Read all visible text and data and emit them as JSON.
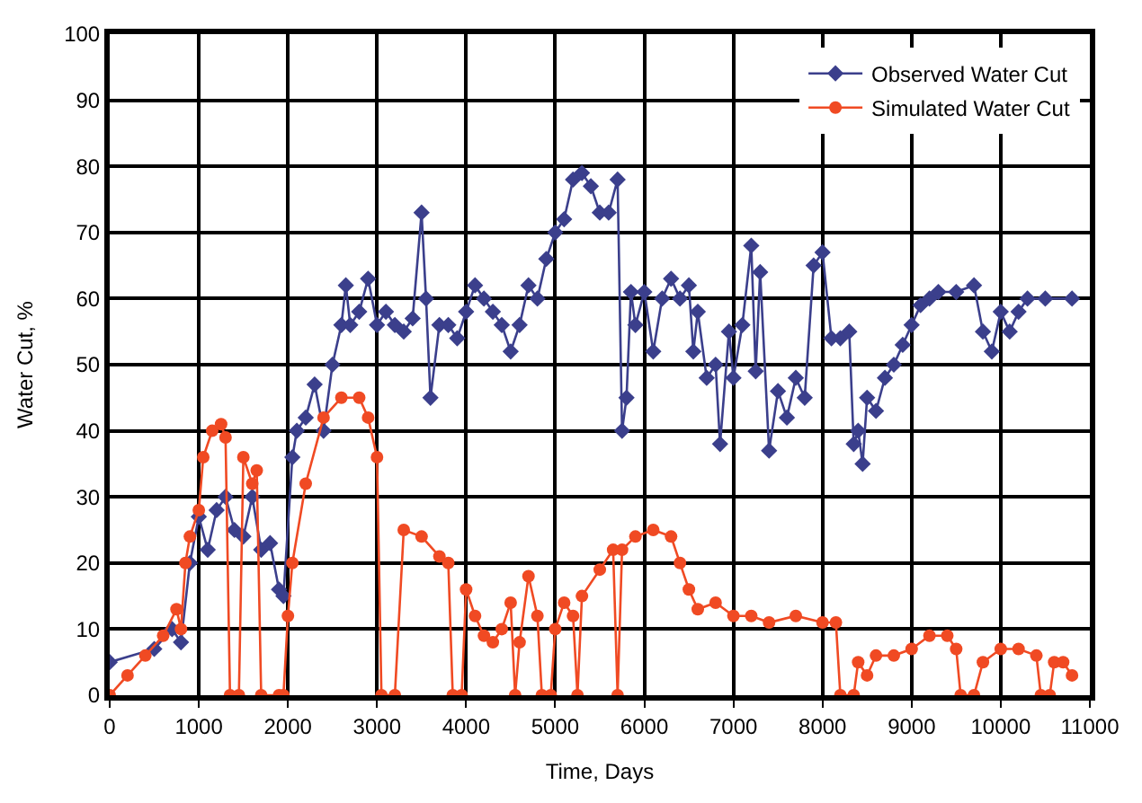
{
  "chart_data": {
    "type": "line",
    "xlabel": "Time, Days",
    "ylabel": "Water Cut, %",
    "xlim": [
      0,
      11000
    ],
    "ylim": [
      0,
      100
    ],
    "xticks": [
      0,
      1000,
      2000,
      3000,
      4000,
      5000,
      6000,
      7000,
      8000,
      9000,
      10000,
      11000
    ],
    "yticks": [
      0,
      10,
      20,
      30,
      40,
      50,
      60,
      70,
      80,
      90,
      100
    ],
    "grid": true,
    "legend": "top right",
    "line_style": "solid",
    "series": [
      {
        "name": "Observed Water Cut",
        "color": "#3b3f8c",
        "marker": "diamond",
        "x": [
          0,
          500,
          700,
          800,
          900,
          1000,
          1100,
          1200,
          1300,
          1400,
          1500,
          1600,
          1700,
          1800,
          1900,
          1950,
          2050,
          2100,
          2200,
          2300,
          2400,
          2500,
          2600,
          2650,
          2700,
          2800,
          2900,
          3000,
          3100,
          3200,
          3300,
          3400,
          3500,
          3550,
          3600,
          3700,
          3800,
          3900,
          4000,
          4100,
          4200,
          4300,
          4400,
          4500,
          4600,
          4700,
          4800,
          4900,
          5000,
          5100,
          5200,
          5300,
          5400,
          5500,
          5600,
          5700,
          5750,
          5800,
          5850,
          5900,
          6000,
          6100,
          6200,
          6300,
          6400,
          6500,
          6550,
          6600,
          6700,
          6800,
          6850,
          6950,
          7000,
          7100,
          7200,
          7250,
          7300,
          7400,
          7500,
          7600,
          7700,
          7800,
          7900,
          8000,
          8100,
          8200,
          8300,
          8350,
          8400,
          8450,
          8500,
          8600,
          8700,
          8800,
          8900,
          9000,
          9100,
          9200,
          9300,
          9500,
          9700,
          9800,
          9900,
          10000,
          10100,
          10200,
          10300,
          10500,
          10800
        ],
        "values": [
          5,
          7,
          10,
          8,
          20,
          27,
          22,
          28,
          30,
          25,
          24,
          30,
          22,
          23,
          16,
          15,
          36,
          40,
          42,
          47,
          40,
          50,
          56,
          62,
          56,
          58,
          63,
          56,
          58,
          56,
          55,
          57,
          73,
          60,
          45,
          56,
          56,
          54,
          58,
          62,
          60,
          58,
          56,
          52,
          56,
          62,
          60,
          66,
          70,
          72,
          78,
          79,
          77,
          73,
          73,
          78,
          40,
          45,
          61,
          56,
          61,
          52,
          60,
          63,
          60,
          62,
          52,
          58,
          48,
          50,
          38,
          55,
          48,
          56,
          68,
          49,
          64,
          37,
          46,
          42,
          48,
          45,
          65,
          67,
          54,
          54,
          55,
          38,
          40,
          35,
          45,
          43,
          48,
          50,
          53,
          56,
          59,
          60,
          61,
          61,
          62,
          55,
          52,
          58,
          55,
          58,
          60,
          60,
          60
        ]
      },
      {
        "name": "Simulated Water Cut",
        "color": "#f04a23",
        "marker": "circle",
        "x": [
          0,
          200,
          400,
          600,
          750,
          800,
          850,
          900,
          1000,
          1050,
          1150,
          1250,
          1300,
          1350,
          1450,
          1500,
          1600,
          1650,
          1700,
          1900,
          1950,
          2000,
          2050,
          2200,
          2400,
          2600,
          2800,
          2900,
          3000,
          3050,
          3200,
          3300,
          3500,
          3700,
          3800,
          3850,
          3950,
          4000,
          4100,
          4200,
          4300,
          4400,
          4500,
          4550,
          4600,
          4700,
          4800,
          4850,
          4950,
          5000,
          5100,
          5200,
          5250,
          5300,
          5500,
          5650,
          5700,
          5750,
          5900,
          6100,
          6300,
          6400,
          6500,
          6600,
          6800,
          7000,
          7200,
          7400,
          7700,
          8000,
          8150,
          8200,
          8350,
          8400,
          8500,
          8600,
          8800,
          9000,
          9200,
          9400,
          9500,
          9550,
          9700,
          9800,
          10000,
          10200,
          10400,
          10450,
          10550,
          10600,
          10700,
          10800
        ],
        "values": [
          0,
          3,
          6,
          9,
          13,
          10,
          20,
          24,
          28,
          36,
          40,
          41,
          39,
          0,
          0,
          36,
          32,
          34,
          0,
          0,
          0,
          12,
          20,
          32,
          42,
          45,
          45,
          42,
          36,
          0,
          0,
          25,
          24,
          21,
          20,
          0,
          0,
          16,
          12,
          9,
          8,
          10,
          14,
          0,
          8,
          18,
          12,
          0,
          0,
          10,
          14,
          12,
          0,
          15,
          19,
          22,
          0,
          22,
          24,
          25,
          24,
          20,
          16,
          13,
          14,
          12,
          12,
          11,
          12,
          11,
          11,
          0,
          0,
          5,
          3,
          6,
          6,
          7,
          9,
          9,
          7,
          0,
          0,
          5,
          7,
          7,
          6,
          0,
          0,
          5,
          5,
          3
        ]
      }
    ]
  }
}
